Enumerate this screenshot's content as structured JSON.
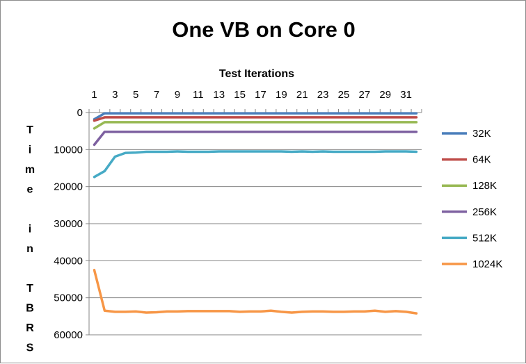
{
  "chart_data": {
    "type": "line",
    "title": "One VB on Core 0",
    "xlabel": "Test Iterations",
    "ylabel": "Time in TBRS",
    "x": [
      1,
      2,
      3,
      4,
      5,
      6,
      7,
      8,
      9,
      10,
      11,
      12,
      13,
      14,
      15,
      16,
      17,
      18,
      19,
      20,
      21,
      22,
      23,
      24,
      25,
      26,
      27,
      28,
      29,
      30,
      31,
      32
    ],
    "x_tick_labels": [
      "1",
      "3",
      "5",
      "7",
      "9",
      "11",
      "13",
      "15",
      "17",
      "19",
      "21",
      "23",
      "25",
      "27",
      "29",
      "31"
    ],
    "y_tick_labels": [
      "0",
      "10000",
      "20000",
      "30000",
      "40000",
      "50000",
      "60000"
    ],
    "ylim": [
      0,
      60000
    ],
    "y_reversed": true,
    "x_axis_position": "top",
    "grid": true,
    "legend_position": "right",
    "series": [
      {
        "name": "32K",
        "color": "#4a7ebb",
        "values": [
          1800,
          200,
          200,
          200,
          200,
          200,
          200,
          200,
          200,
          200,
          200,
          200,
          200,
          200,
          200,
          200,
          200,
          200,
          200,
          200,
          200,
          200,
          200,
          200,
          200,
          200,
          200,
          200,
          200,
          200,
          200,
          200
        ]
      },
      {
        "name": "64K",
        "color": "#be4b48",
        "values": [
          2200,
          1300,
          1300,
          1300,
          1300,
          1300,
          1300,
          1300,
          1300,
          1300,
          1300,
          1300,
          1300,
          1300,
          1300,
          1300,
          1300,
          1300,
          1300,
          1300,
          1300,
          1300,
          1300,
          1300,
          1300,
          1300,
          1300,
          1300,
          1300,
          1300,
          1300,
          1300
        ]
      },
      {
        "name": "128K",
        "color": "#98b954",
        "values": [
          4300,
          2600,
          2600,
          2600,
          2600,
          2600,
          2600,
          2600,
          2600,
          2600,
          2600,
          2600,
          2600,
          2600,
          2600,
          2600,
          2600,
          2600,
          2600,
          2600,
          2600,
          2600,
          2600,
          2600,
          2600,
          2600,
          2600,
          2600,
          2600,
          2600,
          2600,
          2600
        ]
      },
      {
        "name": "256K",
        "color": "#7d60a0",
        "values": [
          8700,
          5200,
          5200,
          5200,
          5200,
          5200,
          5200,
          5200,
          5200,
          5200,
          5200,
          5200,
          5200,
          5200,
          5200,
          5200,
          5200,
          5200,
          5200,
          5200,
          5200,
          5200,
          5200,
          5200,
          5200,
          5200,
          5200,
          5200,
          5200,
          5200,
          5200,
          5200
        ]
      },
      {
        "name": "512K",
        "color": "#46aac5",
        "values": [
          17400,
          15800,
          11900,
          10900,
          10800,
          10600,
          10600,
          10600,
          10500,
          10600,
          10600,
          10600,
          10500,
          10500,
          10500,
          10500,
          10500,
          10500,
          10500,
          10600,
          10500,
          10600,
          10500,
          10600,
          10600,
          10600,
          10600,
          10600,
          10500,
          10500,
          10500,
          10600
        ]
      },
      {
        "name": "1024K",
        "color": "#f79646",
        "values": [
          42500,
          53500,
          53800,
          53800,
          53700,
          54000,
          53900,
          53700,
          53700,
          53600,
          53600,
          53600,
          53600,
          53600,
          53800,
          53700,
          53700,
          53500,
          53800,
          54000,
          53800,
          53700,
          53700,
          53800,
          53800,
          53700,
          53700,
          53500,
          53800,
          53600,
          53800,
          54200
        ]
      }
    ]
  }
}
